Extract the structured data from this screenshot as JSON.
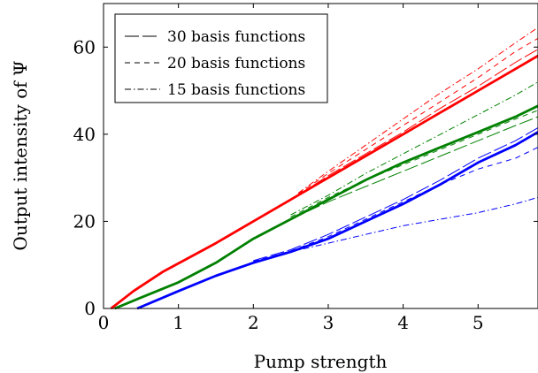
{
  "chart_data": {
    "type": "line",
    "title": "",
    "xlabel": "Pump strength",
    "ylabel": "Output intensity of Ψ",
    "xlim": [
      0,
      5.8
    ],
    "ylim": [
      0,
      70
    ],
    "xticks": [
      "0",
      "1",
      "2",
      "3",
      "4",
      "5"
    ],
    "yticks": [
      "0",
      "20",
      "40",
      "60"
    ],
    "grid": false,
    "legend_placement": "top-left",
    "legend": [
      {
        "label": "30 basis functions",
        "style": "long-dash"
      },
      {
        "label": "20 basis functions",
        "style": "dashed"
      },
      {
        "label": "15 basis functions",
        "style": "dash-dot"
      }
    ],
    "colors": {
      "red": "#ff0000",
      "green": "#008000",
      "blue": "#0000ff",
      "axis": "#000000"
    },
    "series": [
      {
        "color": "red",
        "style": "solid",
        "width": "thick",
        "points": [
          [
            0.1,
            0
          ],
          [
            0.4,
            4
          ],
          [
            0.8,
            8.5
          ],
          [
            1.5,
            15
          ],
          [
            2.0,
            20
          ],
          [
            2.5,
            25
          ],
          [
            3.0,
            30
          ],
          [
            3.5,
            35
          ],
          [
            4.0,
            40
          ],
          [
            4.5,
            45
          ],
          [
            5.0,
            50
          ],
          [
            5.5,
            55
          ],
          [
            5.8,
            58
          ]
        ]
      },
      {
        "color": "red",
        "style": "long-dash",
        "width": "thin",
        "points": [
          [
            2.6,
            26
          ],
          [
            3.0,
            30.5
          ],
          [
            3.5,
            35.5
          ],
          [
            4.0,
            40.5
          ],
          [
            4.5,
            46
          ],
          [
            5.0,
            51
          ],
          [
            5.5,
            56.5
          ],
          [
            5.8,
            59.5
          ]
        ]
      },
      {
        "color": "red",
        "style": "dashed",
        "width": "thin",
        "points": [
          [
            2.6,
            26.3
          ],
          [
            3.0,
            31
          ],
          [
            3.5,
            36.5
          ],
          [
            4.0,
            42
          ],
          [
            4.5,
            47.5
          ],
          [
            5.0,
            53
          ],
          [
            5.5,
            59
          ],
          [
            5.8,
            62
          ]
        ]
      },
      {
        "color": "red",
        "style": "dash-dot",
        "width": "thin",
        "points": [
          [
            2.6,
            26.5
          ],
          [
            3.0,
            31.5
          ],
          [
            3.5,
            37.5
          ],
          [
            4.0,
            43.5
          ],
          [
            4.5,
            49.5
          ],
          [
            5.0,
            55
          ],
          [
            5.5,
            61
          ],
          [
            5.8,
            64.5
          ]
        ]
      },
      {
        "color": "green",
        "style": "solid",
        "width": "thick",
        "points": [
          [
            0.15,
            0
          ],
          [
            0.5,
            2.5
          ],
          [
            1.0,
            6
          ],
          [
            1.5,
            10.5
          ],
          [
            2.0,
            16
          ],
          [
            2.5,
            20.5
          ],
          [
            3.0,
            25
          ],
          [
            3.5,
            29.5
          ],
          [
            4.0,
            33.5
          ],
          [
            4.5,
            37
          ],
          [
            5.0,
            40.5
          ],
          [
            5.5,
            44
          ],
          [
            5.8,
            46.5
          ]
        ]
      },
      {
        "color": "green",
        "style": "long-dash",
        "width": "thin",
        "points": [
          [
            2.5,
            20.5
          ],
          [
            3.0,
            24.5
          ],
          [
            3.5,
            28
          ],
          [
            4.0,
            31.5
          ],
          [
            4.5,
            35
          ],
          [
            5.0,
            38.5
          ],
          [
            5.5,
            42
          ],
          [
            5.8,
            44
          ]
        ]
      },
      {
        "color": "green",
        "style": "dashed",
        "width": "thin",
        "points": [
          [
            2.5,
            21
          ],
          [
            3.0,
            25.5
          ],
          [
            3.5,
            29.5
          ],
          [
            4.0,
            33
          ],
          [
            4.5,
            36.5
          ],
          [
            5.0,
            40
          ],
          [
            5.5,
            43.5
          ],
          [
            5.8,
            45.5
          ]
        ]
      },
      {
        "color": "green",
        "style": "dash-dot",
        "width": "thin",
        "points": [
          [
            2.5,
            21.5
          ],
          [
            3.0,
            26
          ],
          [
            3.5,
            31
          ],
          [
            4.0,
            35.5
          ],
          [
            4.5,
            40
          ],
          [
            5.0,
            44.5
          ],
          [
            5.5,
            49
          ],
          [
            5.8,
            52
          ]
        ]
      },
      {
        "color": "blue",
        "style": "solid",
        "width": "thick",
        "points": [
          [
            0.45,
            0
          ],
          [
            1.0,
            4
          ],
          [
            1.5,
            7.5
          ],
          [
            2.0,
            10.5
          ],
          [
            2.5,
            13
          ],
          [
            3.0,
            16
          ],
          [
            3.5,
            20
          ],
          [
            4.0,
            24
          ],
          [
            4.5,
            28.5
          ],
          [
            5.0,
            33.5
          ],
          [
            5.5,
            37.5
          ],
          [
            5.8,
            40.5
          ]
        ]
      },
      {
        "color": "blue",
        "style": "long-dash",
        "width": "thin",
        "points": [
          [
            2.0,
            11
          ],
          [
            2.5,
            13.5
          ],
          [
            3.0,
            17
          ],
          [
            3.5,
            21
          ],
          [
            4.0,
            25
          ],
          [
            4.5,
            29.5
          ],
          [
            5.0,
            34.5
          ],
          [
            5.5,
            38.5
          ],
          [
            5.8,
            41.5
          ]
        ]
      },
      {
        "color": "blue",
        "style": "dashed",
        "width": "thin",
        "points": [
          [
            2.0,
            10.8
          ],
          [
            2.5,
            13.2
          ],
          [
            3.0,
            16.5
          ],
          [
            3.5,
            20.5
          ],
          [
            4.0,
            24.5
          ],
          [
            4.5,
            28.5
          ],
          [
            5.0,
            32
          ],
          [
            5.5,
            34.5
          ],
          [
            5.8,
            37
          ]
        ]
      },
      {
        "color": "blue",
        "style": "dash-dot",
        "width": "thin",
        "points": [
          [
            2.0,
            10.8
          ],
          [
            2.5,
            13
          ],
          [
            3.0,
            15
          ],
          [
            3.5,
            17
          ],
          [
            4.0,
            19
          ],
          [
            4.5,
            20.5
          ],
          [
            5.0,
            22
          ],
          [
            5.5,
            24
          ],
          [
            5.8,
            25.5
          ]
        ]
      }
    ]
  }
}
